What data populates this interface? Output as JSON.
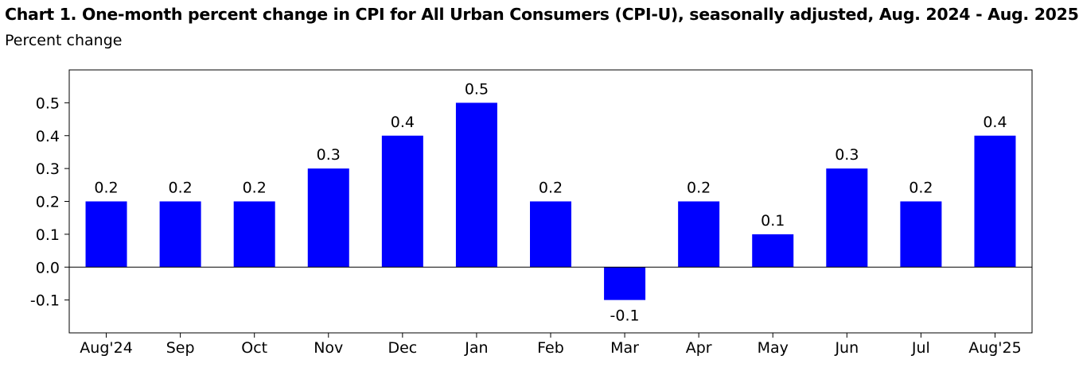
{
  "chart_data": {
    "type": "bar",
    "title": "Chart 1. One-month percent change in CPI for All Urban Consumers (CPI-U), seasonally adjusted, Aug. 2024 - Aug. 2025",
    "subtitle": "Percent change",
    "xlabel": "",
    "ylabel": "",
    "categories": [
      "Aug'24",
      "Sep",
      "Oct",
      "Nov",
      "Dec",
      "Jan",
      "Feb",
      "Mar",
      "Apr",
      "May",
      "Jun",
      "Jul",
      "Aug'25"
    ],
    "values": [
      0.2,
      0.2,
      0.2,
      0.3,
      0.4,
      0.5,
      0.2,
      -0.1,
      0.2,
      0.1,
      0.3,
      0.2,
      0.4
    ],
    "data_labels": [
      "0.2",
      "0.2",
      "0.2",
      "0.3",
      "0.4",
      "0.5",
      "0.2",
      "-0.1",
      "0.2",
      "0.1",
      "0.3",
      "0.2",
      "0.4"
    ],
    "yticks": [
      -0.1,
      0.0,
      0.1,
      0.2,
      0.3,
      0.4,
      0.5
    ],
    "ytick_labels": [
      "-0.1",
      "0.0",
      "0.1",
      "0.2",
      "0.3",
      "0.4",
      "0.5"
    ],
    "ylim": [
      -0.2,
      0.6
    ],
    "bar_color": "#0000ff",
    "grid": false,
    "legend": "none"
  }
}
